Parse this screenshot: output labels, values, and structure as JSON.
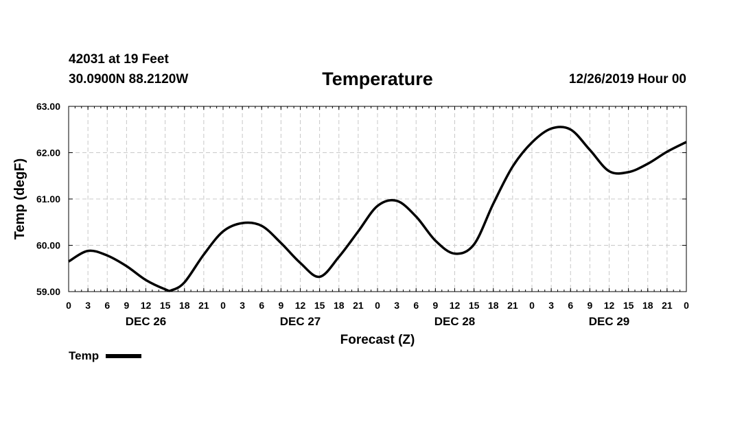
{
  "header": {
    "station": "42031 at 19 Feet",
    "coords": "30.0900N 88.2120W",
    "title": "Temperature",
    "datetime": "12/26/2019 Hour 00"
  },
  "legend": {
    "label": "Temp",
    "color": "#000000"
  },
  "chart_data": {
    "type": "line",
    "title": "Temperature",
    "xlabel": "Forecast (Z)",
    "ylabel": "Temp (degF)",
    "ylim": [
      59.0,
      63.0
    ],
    "yticks": [
      "59.00",
      "60.00",
      "61.00",
      "62.00",
      "63.00"
    ],
    "xlim": [
      0,
      96
    ],
    "x_tick_labels": [
      "0",
      "3",
      "6",
      "9",
      "12",
      "15",
      "18",
      "21",
      "0",
      "3",
      "6",
      "9",
      "12",
      "15",
      "18",
      "21",
      "0",
      "3",
      "6",
      "9",
      "12",
      "15",
      "18",
      "21",
      "0",
      "3",
      "6",
      "9",
      "12",
      "15",
      "18",
      "21",
      "0"
    ],
    "day_labels": [
      {
        "label": "DEC 26",
        "hour": 12
      },
      {
        "label": "DEC 27",
        "hour": 36
      },
      {
        "label": "DEC 28",
        "hour": 60
      },
      {
        "label": "DEC 29",
        "hour": 84
      }
    ],
    "grid": true,
    "series": [
      {
        "name": "Temp",
        "color": "#000000",
        "x": [
          0,
          3,
          6,
          9,
          12,
          15,
          16,
          18,
          21,
          24,
          27,
          30,
          33,
          36,
          39,
          42,
          45,
          48,
          51,
          54,
          57,
          60,
          63,
          66,
          69,
          72,
          75,
          78,
          81,
          84,
          87,
          90,
          93,
          96
        ],
        "y": [
          59.65,
          59.88,
          59.78,
          59.55,
          59.25,
          59.05,
          59.03,
          59.2,
          59.8,
          60.3,
          60.48,
          60.42,
          60.05,
          59.62,
          59.32,
          59.75,
          60.3,
          60.85,
          60.96,
          60.62,
          60.1,
          59.82,
          60.02,
          60.9,
          61.7,
          62.22,
          62.52,
          62.5,
          62.06,
          61.6,
          61.58,
          61.76,
          62.02,
          62.23
        ]
      }
    ]
  }
}
